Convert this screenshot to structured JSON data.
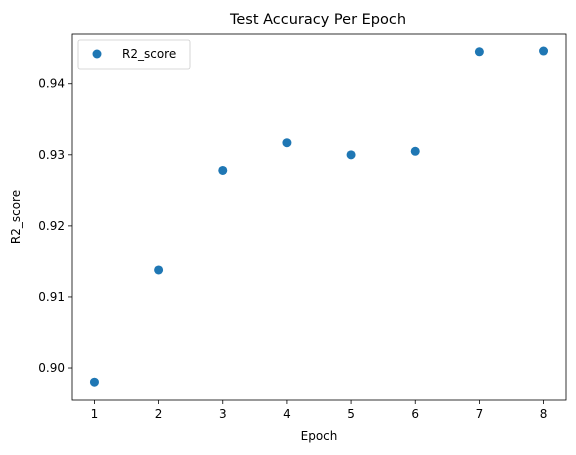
{
  "chart_data": {
    "type": "scatter",
    "title": "Test Accuracy Per Epoch",
    "xlabel": "Epoch",
    "ylabel": "R2_score",
    "xlim": [
      0.65,
      8.35
    ],
    "ylim": [
      0.8955,
      0.947
    ],
    "x_ticks": [
      1,
      2,
      3,
      4,
      5,
      6,
      7,
      8
    ],
    "x_tick_labels": [
      "1",
      "2",
      "3",
      "4",
      "5",
      "6",
      "7",
      "8"
    ],
    "y_ticks": [
      0.9,
      0.91,
      0.92,
      0.93,
      0.94
    ],
    "y_tick_labels": [
      "0.90",
      "0.91",
      "0.92",
      "0.93",
      "0.94"
    ],
    "grid": false,
    "legend_position": "top-left",
    "series": [
      {
        "name": "R2_score",
        "color": "#1f77b4",
        "marker": "circle",
        "x": [
          1,
          2,
          3,
          4,
          5,
          6,
          7,
          8
        ],
        "y": [
          0.898,
          0.9138,
          0.9278,
          0.9317,
          0.93,
          0.9305,
          0.9445,
          0.9446
        ]
      }
    ]
  }
}
